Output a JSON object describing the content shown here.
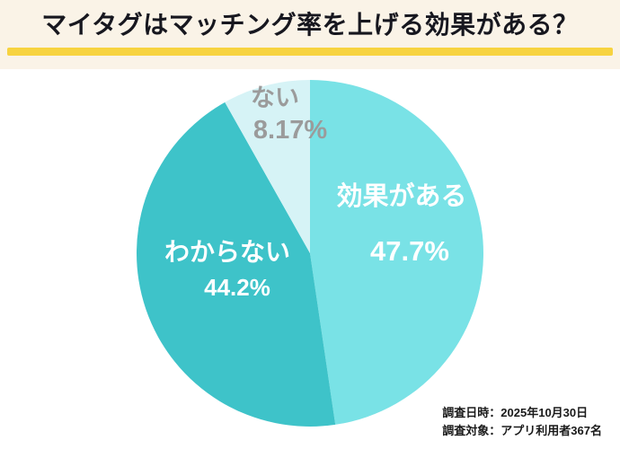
{
  "header": {
    "title": "マイタグはマッチング率を上げる効果がある？"
  },
  "footer": {
    "survey_date": "調査日時：2025年10月30日",
    "survey_target": "調査対象：アプリ利用者367名"
  },
  "colors": {
    "header_background": "#faf3e7",
    "title_text": "#17171f",
    "underline_bar": "#f7d340",
    "slice_yes": "#79e2e6",
    "slice_unknown": "#3ec3c9",
    "slice_no": "#d6f3f6",
    "slice_label_light": "#ffffff",
    "slice_label_gray": "#9b9b9b",
    "footer_text": "#1a1a1a"
  },
  "chart_data": {
    "type": "pie",
    "title": "マイタグはマッチング率を上げる効果がある？",
    "direction": "clockwise",
    "start_angle_deg": 0,
    "legend_position": "labels-on-slices",
    "slices": [
      {
        "label": "効果がある",
        "value": 47.7,
        "display": "47.7%",
        "color": "#79e2e6",
        "label_color": "#ffffff"
      },
      {
        "label": "わからない",
        "value": 44.2,
        "display": "44.2%",
        "color": "#3ec3c9",
        "label_color": "#ffffff"
      },
      {
        "label": "ない",
        "value": 8.17,
        "display": "8.17%",
        "color": "#d6f3f6",
        "label_color": "#9b9b9b"
      }
    ]
  }
}
